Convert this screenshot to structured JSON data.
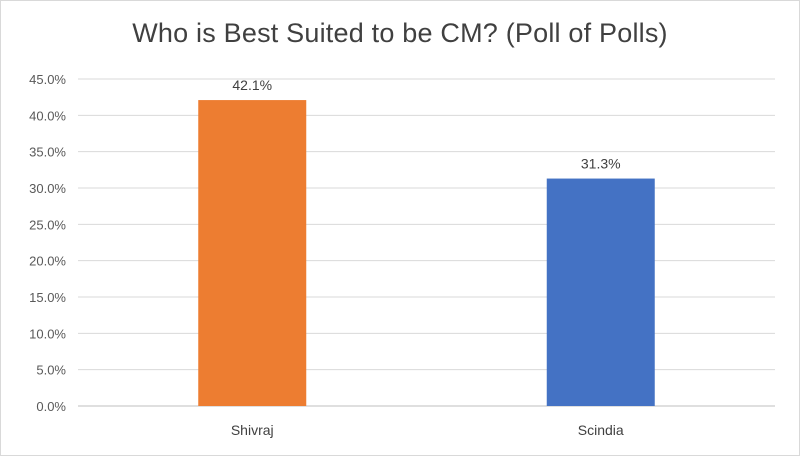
{
  "chart_data": {
    "type": "bar",
    "title": "Who is Best Suited to be CM? (Poll of Polls)",
    "xlabel": "",
    "ylabel": "",
    "categories": [
      "Shivraj",
      "Scindia"
    ],
    "values": [
      42.1,
      31.3
    ],
    "data_labels": [
      "42.1%",
      "31.3%"
    ],
    "bar_colors": [
      "#ed7d31",
      "#4472c4"
    ],
    "ylim": [
      0,
      45
    ],
    "yticks": [
      0,
      5,
      10,
      15,
      20,
      25,
      30,
      35,
      40,
      45
    ],
    "ytick_labels": [
      "0.0%",
      "5.0%",
      "10.0%",
      "15.0%",
      "20.0%",
      "25.0%",
      "30.0%",
      "35.0%",
      "40.0%",
      "45.0%"
    ],
    "grid": true,
    "legend": "none"
  }
}
